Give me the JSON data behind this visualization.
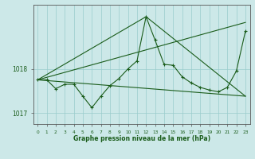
{
  "xlabel": "Graphe pression niveau de la mer (hPa)",
  "x_ticks": [
    0,
    1,
    2,
    3,
    4,
    5,
    6,
    7,
    8,
    9,
    10,
    11,
    12,
    13,
    14,
    15,
    16,
    17,
    18,
    19,
    20,
    21,
    22,
    23
  ],
  "ylim": [
    1016.75,
    1019.45
  ],
  "yticks": [
    1017,
    1018
  ],
  "bg_color": "#cce8e8",
  "line_color": "#1a5c1a",
  "grid_color": "#99cccc",
  "series1_x": [
    0,
    1,
    2,
    3,
    4,
    5,
    6,
    7,
    8,
    9,
    10,
    11,
    12,
    13,
    14,
    15,
    16,
    17,
    18,
    19,
    20,
    21,
    22,
    23
  ],
  "series1_y": [
    1017.75,
    1017.75,
    1017.55,
    1017.65,
    1017.65,
    1017.38,
    1017.12,
    1017.38,
    1017.62,
    1017.78,
    1018.0,
    1018.18,
    1019.18,
    1018.65,
    1018.1,
    1018.08,
    1017.82,
    1017.68,
    1017.58,
    1017.52,
    1017.48,
    1017.58,
    1017.95,
    1018.85
  ],
  "series2_x": [
    0,
    23
  ],
  "series2_y": [
    1017.75,
    1019.05
  ],
  "series3_x": [
    0,
    23
  ],
  "series3_y": [
    1017.75,
    1017.38
  ],
  "series4_x": [
    0,
    12,
    23
  ],
  "series4_y": [
    1017.75,
    1019.18,
    1017.38
  ]
}
